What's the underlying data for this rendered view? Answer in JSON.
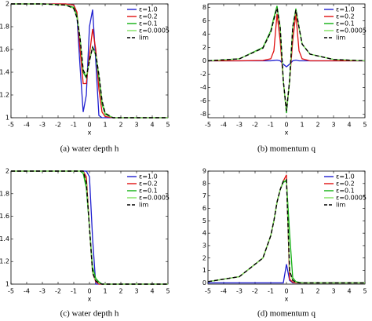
{
  "chart_data": [
    {
      "type": "line",
      "caption": "(a) water depth h",
      "xlabel": "x",
      "x": [
        -5,
        -3,
        -1.5,
        -1,
        -0.8,
        -0.6,
        -0.4,
        -0.2,
        0,
        0.2,
        0.4,
        0.6,
        0.8,
        1,
        1.5,
        3,
        5
      ],
      "xlim": [
        -5,
        5
      ],
      "xticks": [
        -5,
        -4,
        -3,
        -2,
        -1,
        0,
        1,
        2,
        3,
        4,
        5
      ],
      "ylim": [
        1,
        2
      ],
      "yticks": [
        1,
        1.2,
        1.4,
        1.6,
        1.8,
        2
      ],
      "legend": "upper right",
      "series": [
        {
          "name": "ε=1.0",
          "color": "#1f1fd0",
          "values": [
            2,
            2,
            2,
            1.99,
            1.9,
            1.45,
            1.05,
            1.2,
            1.8,
            1.95,
            1.5,
            1.02,
            1,
            1,
            1,
            1,
            1
          ]
        },
        {
          "name": "ε=0.2",
          "color": "#e01010",
          "values": [
            2,
            2,
            2,
            1.99,
            1.93,
            1.6,
            1.3,
            1.3,
            1.55,
            1.78,
            1.6,
            1.25,
            1.05,
            1.01,
            1,
            1,
            1
          ]
        },
        {
          "name": "ε=0.1",
          "color": "#10b010",
          "values": [
            2,
            2,
            1.99,
            1.97,
            1.9,
            1.7,
            1.4,
            1.35,
            1.5,
            1.62,
            1.55,
            1.35,
            1.12,
            1.03,
            1,
            1,
            1
          ]
        },
        {
          "name": "ε=0.0005",
          "color": "#80e060",
          "values": [
            2,
            2,
            1.99,
            1.96,
            1.88,
            1.7,
            1.42,
            1.36,
            1.5,
            1.62,
            1.56,
            1.38,
            1.15,
            1.04,
            1,
            1,
            1
          ]
        },
        {
          "name": "lim",
          "color": "#000000",
          "dashed": true,
          "values": [
            2,
            2,
            1.99,
            1.96,
            1.88,
            1.7,
            1.42,
            1.36,
            1.5,
            1.62,
            1.56,
            1.38,
            1.15,
            1.04,
            1,
            1,
            1
          ]
        }
      ]
    },
    {
      "type": "line",
      "caption": "(b) momentum q",
      "xlabel": "x",
      "x": [
        -5,
        -3,
        -1.5,
        -1,
        -0.8,
        -0.6,
        -0.4,
        -0.2,
        0,
        0.2,
        0.4,
        0.6,
        0.8,
        1,
        1.5,
        3,
        5
      ],
      "xlim": [
        -5,
        5
      ],
      "xticks": [
        -5,
        -4,
        -3,
        -2,
        -1,
        0,
        1,
        2,
        3,
        4,
        5
      ],
      "ylim": [
        -8.5,
        8.5
      ],
      "yticks": [
        -8,
        -6,
        -4,
        -2,
        0,
        2,
        4,
        6,
        8
      ],
      "legend": "upper right",
      "series": [
        {
          "name": "ε=1.0",
          "color": "#1f1fd0",
          "values": [
            0,
            0,
            0,
            0,
            0.05,
            0.1,
            0,
            -0.5,
            -0.9,
            -0.5,
            0,
            0.1,
            0,
            0,
            0,
            0,
            0
          ]
        },
        {
          "name": "ε=0.2",
          "color": "#e01010",
          "values": [
            0,
            0,
            0.05,
            0.3,
            1.5,
            7,
            3,
            -3,
            -7.5,
            -3,
            3,
            7,
            1.5,
            0.3,
            0,
            0,
            0
          ]
        },
        {
          "name": "ε=0.1",
          "color": "#10b010",
          "values": [
            0,
            0.3,
            2,
            4.5,
            6.5,
            8.2,
            5,
            -3,
            -7.8,
            -3,
            5,
            7.8,
            5,
            2.5,
            1,
            0.2,
            0
          ]
        },
        {
          "name": "ε=0.0005",
          "color": "#80e060",
          "values": [
            0,
            0.3,
            1.9,
            4.3,
            6.2,
            7.9,
            5,
            -3,
            -7.5,
            -3,
            5,
            7.6,
            5,
            2.5,
            1,
            0.2,
            0
          ]
        },
        {
          "name": "lim",
          "color": "#000000",
          "dashed": true,
          "values": [
            0,
            0.3,
            1.9,
            4.3,
            6.2,
            7.9,
            5,
            -3,
            -7.5,
            -3,
            5,
            7.6,
            5,
            2.5,
            1,
            0.2,
            0
          ]
        }
      ]
    },
    {
      "type": "line",
      "caption": "(c) water depth h",
      "xlabel": "x",
      "x": [
        -5,
        -3,
        -1.5,
        -1,
        -0.8,
        -0.6,
        -0.4,
        -0.2,
        0,
        0.2,
        0.4,
        0.6,
        0.8,
        1,
        1.5,
        3,
        5
      ],
      "xlim": [
        -5,
        5
      ],
      "xticks": [
        -5,
        -4,
        -3,
        -2,
        -1,
        0,
        1,
        2,
        3,
        4,
        5
      ],
      "ylim": [
        1,
        2
      ],
      "yticks": [
        1,
        1.2,
        1.4,
        1.6,
        1.8,
        2
      ],
      "legend": "upper right",
      "series": [
        {
          "name": "ε=1.0",
          "color": "#1f1fd0",
          "values": [
            2,
            2,
            2,
            2,
            2,
            2,
            2,
            2,
            1.95,
            1.4,
            1,
            1,
            1,
            1,
            1,
            1,
            1
          ]
        },
        {
          "name": "ε=0.2",
          "color": "#e01010",
          "values": [
            2,
            2,
            2,
            2,
            2,
            2,
            2,
            1.95,
            1.5,
            1.1,
            1.02,
            1,
            1,
            1,
            1,
            1,
            1
          ]
        },
        {
          "name": "ε=0.1",
          "color": "#10b010",
          "values": [
            2,
            2,
            2,
            2,
            2,
            2,
            1.98,
            1.85,
            1.5,
            1.15,
            1.05,
            1.02,
            1,
            1,
            1,
            1,
            1
          ]
        },
        {
          "name": "ε=0.0005",
          "color": "#80e060",
          "values": [
            2,
            2,
            2,
            2,
            2,
            2,
            2,
            1.9,
            1.5,
            1.1,
            1.03,
            1.01,
            1,
            1,
            1,
            1,
            1
          ]
        },
        {
          "name": "lim",
          "color": "#000000",
          "dashed": true,
          "values": [
            2,
            2,
            2,
            2,
            2,
            2,
            2,
            1.9,
            1.5,
            1.1,
            1.03,
            1.01,
            1,
            1,
            1,
            1,
            1
          ]
        }
      ]
    },
    {
      "type": "line",
      "caption": "(d) momentum q",
      "xlabel": "x",
      "x": [
        -5,
        -3,
        -1.5,
        -1,
        -0.8,
        -0.6,
        -0.4,
        -0.2,
        0,
        0.2,
        0.4,
        0.6,
        0.8,
        1,
        1.5,
        3,
        5
      ],
      "xlim": [
        -5,
        5
      ],
      "xticks": [
        -5,
        -4,
        -3,
        -2,
        -1,
        0,
        1,
        2,
        3,
        4,
        5
      ],
      "ylim": [
        -0.1,
        9
      ],
      "yticks": [
        0,
        1,
        2,
        3,
        4,
        5,
        6,
        7,
        8,
        9
      ],
      "legend": "upper right",
      "series": [
        {
          "name": "ε=1.0",
          "color": "#1f1fd0",
          "values": [
            0,
            0,
            0,
            0,
            0,
            0,
            0,
            0,
            1.5,
            0.2,
            0,
            0,
            0,
            0,
            0,
            0,
            0
          ]
        },
        {
          "name": "ε=0.2",
          "color": "#e01010",
          "values": [
            0.1,
            0.5,
            2,
            3.8,
            5,
            6.5,
            7.5,
            8.2,
            8.7,
            0.3,
            0.05,
            0,
            0,
            0,
            0,
            0,
            0
          ]
        },
        {
          "name": "ε=0.1",
          "color": "#10b010",
          "values": [
            0.1,
            0.5,
            2,
            3.8,
            5,
            6.5,
            7.5,
            8.1,
            8.2,
            4,
            0.4,
            0.1,
            0.05,
            0,
            0,
            0,
            0
          ]
        },
        {
          "name": "ε=0.0005",
          "color": "#80e060",
          "values": [
            0.1,
            0.5,
            2,
            3.8,
            5,
            6.5,
            7.5,
            8.2,
            8.3,
            1,
            0.2,
            0.05,
            0,
            0,
            0,
            0,
            0
          ]
        },
        {
          "name": "lim",
          "color": "#000000",
          "dashed": true,
          "values": [
            0.1,
            0.5,
            2,
            3.8,
            5,
            6.5,
            7.5,
            8.2,
            8.3,
            1,
            0.2,
            0.05,
            0,
            0,
            0,
            0,
            0
          ]
        }
      ]
    }
  ]
}
